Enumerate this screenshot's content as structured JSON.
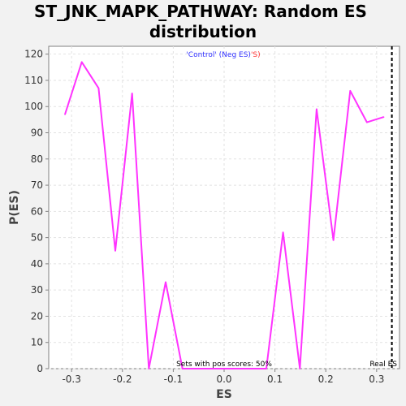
{
  "chart_data": {
    "type": "line",
    "title": [
      "ST_JNK_MAPK_PATHWAY: Random ES",
      "distribution"
    ],
    "xlabel": "ES",
    "ylabel": "P(ES)",
    "xlim": [
      -0.345,
      0.345
    ],
    "ylim": [
      0,
      123
    ],
    "xticks": [
      -0.3,
      -0.2,
      -0.1,
      0.0,
      0.1,
      0.2,
      0.3
    ],
    "xtick_labels": [
      "-0.3",
      "-0.2",
      "-0.1",
      "0.0",
      "0.1",
      "0.2",
      "0.3"
    ],
    "yticks": [
      0,
      10,
      20,
      30,
      40,
      50,
      60,
      70,
      80,
      90,
      100,
      110,
      120
    ],
    "ytick_labels": [
      "0",
      "10",
      "20",
      "30",
      "40",
      "50",
      "60",
      "70",
      "80",
      "90",
      "100",
      "110",
      "120"
    ],
    "grid": true,
    "series": [
      {
        "color": "#ff33ff",
        "x": [
          -0.313,
          -0.28,
          -0.247,
          -0.214,
          -0.181,
          -0.148,
          -0.115,
          -0.082,
          -0.049,
          -0.016,
          0.017,
          0.05,
          0.083,
          0.116,
          0.149,
          0.182,
          0.215,
          0.248,
          0.281,
          0.314
        ],
        "y": [
          97,
          117,
          107,
          45,
          105,
          0,
          33,
          0,
          0,
          0,
          0,
          0,
          0,
          52,
          0,
          99,
          49,
          106,
          94,
          96
        ]
      }
    ],
    "real_es": {
      "x": 0.33,
      "label": "Real ES",
      "color": "#000000"
    },
    "legend": {
      "position": "top-center",
      "parts": [
        {
          "text": "'Control' (Neg ES)",
          "color": "#3333ff"
        },
        {
          "text": "'",
          "color": "#ff3333"
        },
        {
          "text": "S)",
          "color": "#ff3333"
        }
      ]
    },
    "annotation": "Sets with pos scores: 50%"
  }
}
